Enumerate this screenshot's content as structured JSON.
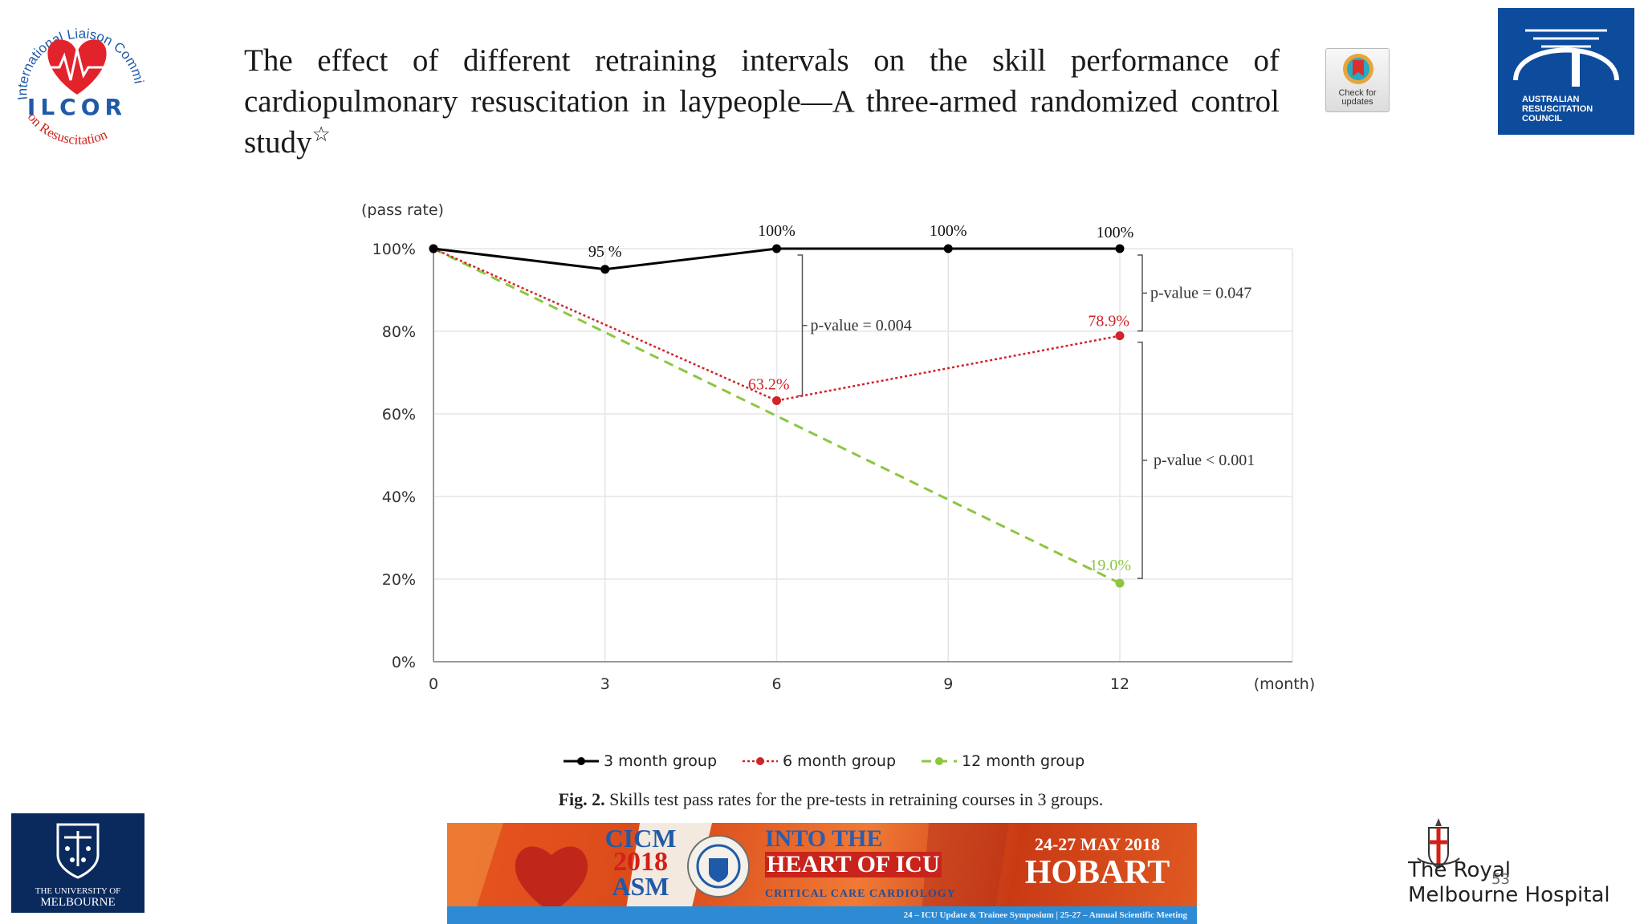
{
  "logos": {
    "ilcor": {
      "arc_text": "International Liaison Committee",
      "name": "ILCOR",
      "bottom_text": "on Resuscitation"
    },
    "arc": {
      "text": "AUSTRALIAN\nRESUSCITATION\nCOUNCIL"
    },
    "unimelb": {
      "line1": "THE UNIVERSITY OF",
      "line2": "MELBOURNE"
    },
    "rmh": {
      "text": "The Royal\nMelbourne Hospital"
    }
  },
  "title": "The effect of different retraining intervals on the skill performance of cardiopulmonary resuscitation in laypeople—A three-armed randomized control study",
  "title_mark": "☆",
  "check_updates": "Check for\nupdates",
  "caption": {
    "label": "Fig. 2.",
    "text": "Skills test pass rates for the pre-tests in retraining courses in 3 groups."
  },
  "banner": {
    "cicm_line1": "CICM",
    "cicm_line2": "2018",
    "cicm_line3": "ASM",
    "into": "INTO THE",
    "heart": "HEART OF ICU",
    "critical": "CRITICAL CARE CARDIOLOGY",
    "dates": "24-27 MAY 2018",
    "city": "HOBART",
    "bottom": "24 – ICU Update & Trainee Symposium | 25-27 – Annual Scientific Meeting"
  },
  "page_number": "53",
  "colors": {
    "three_month": "#000000",
    "six_month": "#d2232a",
    "twelve_month": "#8dc63f",
    "grid": "#e6e6e6",
    "axis": "#999999"
  },
  "chart_data": {
    "type": "line",
    "y_axis_title": "(pass rate)",
    "x_axis_title": "(month)",
    "x_ticks": [
      "0",
      "3",
      "6",
      "9",
      "12"
    ],
    "y_ticks": [
      "0%",
      "20%",
      "40%",
      "60%",
      "80%",
      "100%"
    ],
    "xlim": [
      0,
      12
    ],
    "ylim": [
      0,
      100
    ],
    "grid": true,
    "legend_position": "bottom",
    "series": [
      {
        "name": "3 month group",
        "x": [
          0,
          3,
          6,
          9,
          12
        ],
        "values": [
          100,
          95,
          100,
          100,
          100
        ],
        "labels": [
          "",
          "95 %",
          "100%",
          "100%",
          "100%"
        ],
        "line": "solid"
      },
      {
        "name": "6 month group",
        "x": [
          0,
          6,
          12
        ],
        "values": [
          100,
          63.2,
          78.9
        ],
        "labels": [
          "",
          "63.2%",
          "78.9%"
        ],
        "line": "dotted"
      },
      {
        "name": "12 month group",
        "x": [
          0,
          12
        ],
        "values": [
          100,
          19.0
        ],
        "labels": [
          "",
          "19.0%"
        ],
        "line": "dashed"
      }
    ],
    "annotations": [
      {
        "text": "p-value = 0.004",
        "at_month": 6,
        "between": [
          100,
          63.2
        ]
      },
      {
        "text": "p-value = 0.047",
        "at_month": 12,
        "between": [
          100,
          78.9
        ]
      },
      {
        "text": "p-value < 0.001",
        "at_month": 12,
        "between": [
          78.9,
          19.0
        ]
      }
    ]
  }
}
